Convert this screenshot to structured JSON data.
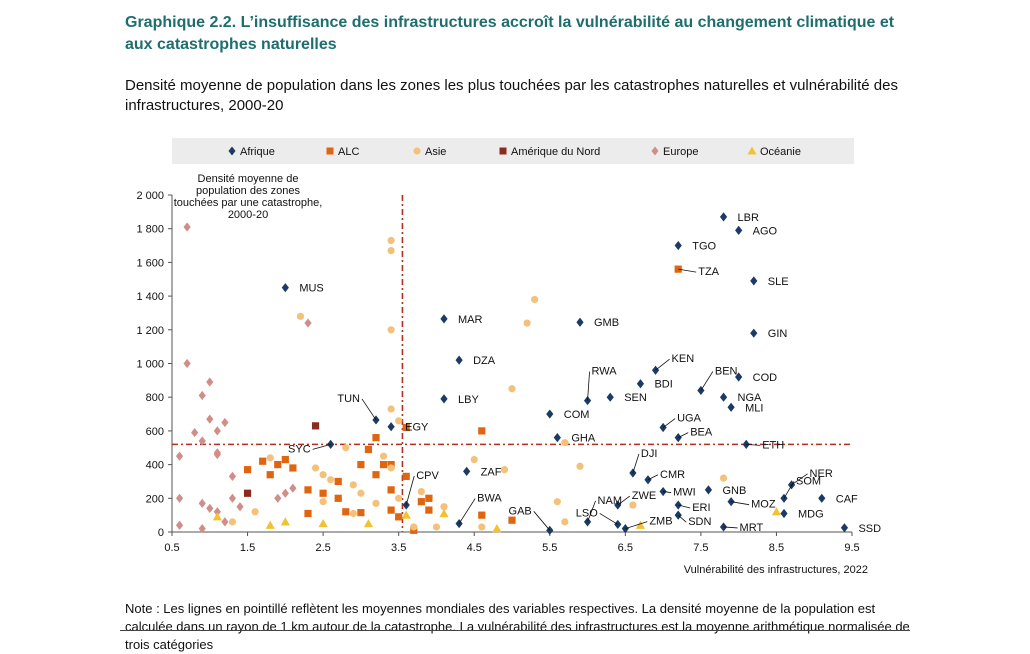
{
  "header": {
    "title": "Graphique 2.2. L’insuffisance des infrastructures accroît la vulnérabilité au changement climatique et aux catastrophes naturelles",
    "subtitle": "Densité moyenne de population dans les zones les plus touchées par les catastrophes naturelles et vulnérabilité des infrastructures, 2000-20"
  },
  "note": "Note : Les lignes en pointillé reflètent les moyennes mondiales des variables respectives. La densité moyenne de la population est calculée dans un rayon de 1 km autour de la catastrophe. La vulnérabilité des infrastructures est la moyenne arithmétique normalisée de trois catégories",
  "chart_data": {
    "type": "scatter",
    "xlabel": "Vulnérabilité des infrastructures, 2022",
    "ylabel": "Densité moyenne de population des zones touchées par une catastrophe, 2000-20",
    "xlim": [
      0.5,
      9.5
    ],
    "ylim": [
      0,
      2000
    ],
    "xticks": [
      0.5,
      1.5,
      2.5,
      3.5,
      4.5,
      5.5,
      6.5,
      7.5,
      8.5,
      9.5
    ],
    "xtick_labels": [
      "0.5",
      "1.5",
      "2.5",
      "3.5",
      "4.5",
      "5.5",
      "6.5",
      "7.5",
      "8.5",
      "9.5"
    ],
    "yticks": [
      0,
      200,
      400,
      600,
      800,
      1000,
      1200,
      1400,
      1600,
      1800,
      2000
    ],
    "ytick_labels": [
      "0",
      "200",
      "400",
      "600",
      "800",
      "1 000",
      "1 200",
      "1 400",
      "1 600",
      "1 800",
      "2 000"
    ],
    "reference_lines": {
      "x_mean": 3.55,
      "y_mean": 520
    },
    "legend_position": "top",
    "series": [
      {
        "name": "Afrique",
        "color": "#1b3a66",
        "marker": "diamond",
        "points": [
          {
            "x": 2.0,
            "y": 1450,
            "label": "MUS"
          },
          {
            "x": 3.2,
            "y": 665,
            "label": "TUN"
          },
          {
            "x": 3.4,
            "y": 625,
            "label": "EGY"
          },
          {
            "x": 4.1,
            "y": 1265,
            "label": "MAR"
          },
          {
            "x": 4.3,
            "y": 1020,
            "label": "DZA"
          },
          {
            "x": 4.1,
            "y": 790,
            "label": "LBY"
          },
          {
            "x": 2.6,
            "y": 520,
            "label": "SYC"
          },
          {
            "x": 3.6,
            "y": 160,
            "label": "CPV"
          },
          {
            "x": 4.4,
            "y": 360,
            "label": "ZAF"
          },
          {
            "x": 4.3,
            "y": 50,
            "label": "BWA"
          },
          {
            "x": 5.9,
            "y": 1245,
            "label": "GMB"
          },
          {
            "x": 5.5,
            "y": 700,
            "label": "COM"
          },
          {
            "x": 5.6,
            "y": 560,
            "label": "GHA"
          },
          {
            "x": 6.0,
            "y": 780,
            "label": "RWA"
          },
          {
            "x": 6.3,
            "y": 800,
            "label": "SEN"
          },
          {
            "x": 5.5,
            "y": 10,
            "label": "GAB"
          },
          {
            "x": 6.0,
            "y": 60,
            "label": "NAM"
          },
          {
            "x": 6.4,
            "y": 45,
            "label": "LSO"
          },
          {
            "x": 6.5,
            "y": 20,
            "label": "ZMB"
          },
          {
            "x": 6.6,
            "y": 350,
            "label": "DJI"
          },
          {
            "x": 6.8,
            "y": 310,
            "label": "CMR"
          },
          {
            "x": 6.9,
            "y": 960,
            "label": "KEN"
          },
          {
            "x": 6.7,
            "y": 880,
            "label": "BDI"
          },
          {
            "x": 7.0,
            "y": 620,
            "label": "UGA"
          },
          {
            "x": 7.2,
            "y": 560,
            "label": "BEA"
          },
          {
            "x": 7.0,
            "y": 240,
            "label": "MWI"
          },
          {
            "x": 6.4,
            "y": 160,
            "label": "ZWE"
          },
          {
            "x": 7.2,
            "y": 1700,
            "label": "TGO"
          },
          {
            "x": 7.8,
            "y": 1870,
            "label": "LBR"
          },
          {
            "x": 8.0,
            "y": 1790,
            "label": "AGO"
          },
          {
            "x": 8.2,
            "y": 1490,
            "label": "SLE"
          },
          {
            "x": 8.2,
            "y": 1180,
            "label": "GIN"
          },
          {
            "x": 7.5,
            "y": 840,
            "label": "BEN"
          },
          {
            "x": 8.0,
            "y": 920,
            "label": "COD"
          },
          {
            "x": 7.8,
            "y": 800,
            "label": "NGA"
          },
          {
            "x": 7.9,
            "y": 740,
            "label": "MLI"
          },
          {
            "x": 8.1,
            "y": 520,
            "label": "ETH"
          },
          {
            "x": 7.6,
            "y": 250,
            "label": "GNB"
          },
          {
            "x": 7.2,
            "y": 160,
            "label": "ERI"
          },
          {
            "x": 7.2,
            "y": 100,
            "label": "SDN"
          },
          {
            "x": 7.9,
            "y": 180,
            "label": "MOZ"
          },
          {
            "x": 7.8,
            "y": 30,
            "label": "MRT"
          },
          {
            "x": 8.6,
            "y": 200,
            "label": "SOM"
          },
          {
            "x": 8.7,
            "y": 280,
            "label": "NER"
          },
          {
            "x": 8.6,
            "y": 110,
            "label": "MDG"
          },
          {
            "x": 9.1,
            "y": 200,
            "label": "CAF"
          },
          {
            "x": 9.4,
            "y": 25,
            "label": "SSD"
          }
        ]
      },
      {
        "name": "ALC",
        "color": "#e06510",
        "marker": "square",
        "points": [
          {
            "x": 7.2,
            "y": 1560,
            "label": "TZA"
          },
          {
            "x": 1.5,
            "y": 370
          },
          {
            "x": 1.7,
            "y": 420
          },
          {
            "x": 1.8,
            "y": 340
          },
          {
            "x": 1.9,
            "y": 400
          },
          {
            "x": 2.1,
            "y": 380
          },
          {
            "x": 2.3,
            "y": 250
          },
          {
            "x": 2.3,
            "y": 110
          },
          {
            "x": 2.5,
            "y": 230
          },
          {
            "x": 2.7,
            "y": 300
          },
          {
            "x": 2.8,
            "y": 120
          },
          {
            "x": 2.7,
            "y": 200
          },
          {
            "x": 3.0,
            "y": 115
          },
          {
            "x": 3.1,
            "y": 490
          },
          {
            "x": 3.2,
            "y": 560
          },
          {
            "x": 3.2,
            "y": 340
          },
          {
            "x": 3.3,
            "y": 400
          },
          {
            "x": 3.4,
            "y": 250
          },
          {
            "x": 3.4,
            "y": 130
          },
          {
            "x": 3.5,
            "y": 90
          },
          {
            "x": 3.6,
            "y": 620
          },
          {
            "x": 3.6,
            "y": 330
          },
          {
            "x": 3.9,
            "y": 200
          },
          {
            "x": 3.8,
            "y": 180
          },
          {
            "x": 3.9,
            "y": 130
          },
          {
            "x": 4.6,
            "y": 600
          },
          {
            "x": 4.6,
            "y": 100
          },
          {
            "x": 5.0,
            "y": 70
          },
          {
            "x": 3.7,
            "y": 10
          },
          {
            "x": 3.4,
            "y": 400
          },
          {
            "x": 3.0,
            "y": 400
          },
          {
            "x": 2.0,
            "y": 430
          }
        ]
      },
      {
        "name": "Asie",
        "color": "#f5c07a",
        "marker": "circle",
        "points": [
          {
            "x": 3.4,
            "y": 1730
          },
          {
            "x": 3.4,
            "y": 1670
          },
          {
            "x": 2.2,
            "y": 1280
          },
          {
            "x": 3.4,
            "y": 1200
          },
          {
            "x": 5.3,
            "y": 1380
          },
          {
            "x": 5.2,
            "y": 1240
          },
          {
            "x": 5.0,
            "y": 850
          },
          {
            "x": 3.4,
            "y": 730
          },
          {
            "x": 3.5,
            "y": 660
          },
          {
            "x": 4.5,
            "y": 430
          },
          {
            "x": 4.9,
            "y": 370
          },
          {
            "x": 5.7,
            "y": 530
          },
          {
            "x": 5.9,
            "y": 390
          },
          {
            "x": 7.8,
            "y": 320
          },
          {
            "x": 5.6,
            "y": 180
          },
          {
            "x": 6.6,
            "y": 160
          },
          {
            "x": 5.7,
            "y": 60
          },
          {
            "x": 1.6,
            "y": 120
          },
          {
            "x": 1.3,
            "y": 60
          },
          {
            "x": 1.8,
            "y": 440
          },
          {
            "x": 2.4,
            "y": 380
          },
          {
            "x": 2.5,
            "y": 340
          },
          {
            "x": 2.6,
            "y": 310
          },
          {
            "x": 2.8,
            "y": 500
          },
          {
            "x": 2.9,
            "y": 280
          },
          {
            "x": 3.0,
            "y": 230
          },
          {
            "x": 3.2,
            "y": 170
          },
          {
            "x": 3.3,
            "y": 450
          },
          {
            "x": 3.4,
            "y": 380
          },
          {
            "x": 3.5,
            "y": 200
          },
          {
            "x": 3.8,
            "y": 240
          },
          {
            "x": 4.1,
            "y": 150
          },
          {
            "x": 4.6,
            "y": 30
          },
          {
            "x": 4.0,
            "y": 30
          },
          {
            "x": 3.7,
            "y": 30
          },
          {
            "x": 2.5,
            "y": 180
          },
          {
            "x": 2.9,
            "y": 110
          }
        ]
      },
      {
        "name": "Amérique du Nord",
        "color": "#8b2a1e",
        "marker": "square",
        "points": [
          {
            "x": 2.4,
            "y": 630
          },
          {
            "x": 1.5,
            "y": 230
          }
        ]
      },
      {
        "name": "Europe",
        "color": "#cf8f88",
        "marker": "diamond",
        "points": [
          {
            "x": 0.7,
            "y": 1810
          },
          {
            "x": 2.3,
            "y": 1240
          },
          {
            "x": 0.7,
            "y": 1000
          },
          {
            "x": 1.0,
            "y": 890
          },
          {
            "x": 0.9,
            "y": 810
          },
          {
            "x": 1.0,
            "y": 670
          },
          {
            "x": 1.2,
            "y": 650
          },
          {
            "x": 1.1,
            "y": 600
          },
          {
            "x": 0.8,
            "y": 590
          },
          {
            "x": 0.9,
            "y": 540
          },
          {
            "x": 1.1,
            "y": 470
          },
          {
            "x": 1.1,
            "y": 460
          },
          {
            "x": 0.6,
            "y": 450
          },
          {
            "x": 1.3,
            "y": 330
          },
          {
            "x": 1.3,
            "y": 200
          },
          {
            "x": 0.6,
            "y": 200
          },
          {
            "x": 0.6,
            "y": 40
          },
          {
            "x": 0.9,
            "y": 170
          },
          {
            "x": 1.0,
            "y": 140
          },
          {
            "x": 1.1,
            "y": 120
          },
          {
            "x": 1.2,
            "y": 60
          },
          {
            "x": 0.9,
            "y": 20
          },
          {
            "x": 1.4,
            "y": 150
          },
          {
            "x": 1.9,
            "y": 200
          },
          {
            "x": 2.0,
            "y": 230
          },
          {
            "x": 2.1,
            "y": 260
          }
        ]
      },
      {
        "name": "Océanie",
        "color": "#f2c232",
        "marker": "triangle",
        "points": [
          {
            "x": 1.1,
            "y": 90
          },
          {
            "x": 1.8,
            "y": 40
          },
          {
            "x": 2.0,
            "y": 60
          },
          {
            "x": 2.5,
            "y": 50
          },
          {
            "x": 3.1,
            "y": 50
          },
          {
            "x": 3.6,
            "y": 100
          },
          {
            "x": 4.1,
            "y": 110
          },
          {
            "x": 6.7,
            "y": 40
          },
          {
            "x": 8.5,
            "y": 120
          },
          {
            "x": 4.8,
            "y": 20
          }
        ]
      }
    ],
    "callouts": [
      {
        "label": "TUN",
        "to": [
          3.2,
          665
        ]
      },
      {
        "label": "SYC",
        "to": [
          2.6,
          520
        ]
      },
      {
        "label": "CPV",
        "to": [
          3.6,
          160
        ]
      },
      {
        "label": "BWA",
        "to": [
          4.3,
          50
        ]
      },
      {
        "label": "GAB",
        "to": [
          5.5,
          10
        ]
      },
      {
        "label": "NAM",
        "to": [
          6.0,
          60
        ]
      },
      {
        "label": "LSO",
        "to": [
          6.4,
          45
        ]
      },
      {
        "label": "ZMB",
        "to": [
          6.5,
          20
        ]
      },
      {
        "label": "DJI",
        "to": [
          6.6,
          350
        ]
      },
      {
        "label": "CMR",
        "to": [
          6.8,
          310
        ]
      },
      {
        "label": "RWA",
        "to": [
          6.0,
          780
        ]
      },
      {
        "label": "KEN",
        "to": [
          6.9,
          960
        ]
      },
      {
        "label": "TZA",
        "to": [
          7.2,
          1560
        ]
      },
      {
        "label": "ETH",
        "to": [
          8.1,
          520
        ]
      },
      {
        "label": "MOZ",
        "to": [
          7.9,
          180
        ]
      },
      {
        "label": "MRT",
        "to": [
          7.8,
          30
        ]
      },
      {
        "label": "SOM",
        "to": [
          8.6,
          200
        ]
      },
      {
        "label": "BEA",
        "to": [
          7.2,
          560
        ]
      },
      {
        "label": "UGA",
        "to": [
          7.0,
          620
        ]
      },
      {
        "label": "BEN",
        "to": [
          7.5,
          840
        ]
      },
      {
        "label": "SDN",
        "to": [
          7.2,
          100
        ]
      },
      {
        "label": "ERI",
        "to": [
          7.2,
          160
        ]
      },
      {
        "label": "MWI",
        "to": [
          7.0,
          240
        ]
      },
      {
        "label": "NER",
        "to": [
          8.7,
          280
        ]
      },
      {
        "label": "ZWE",
        "to": [
          6.4,
          160
        ]
      }
    ]
  }
}
